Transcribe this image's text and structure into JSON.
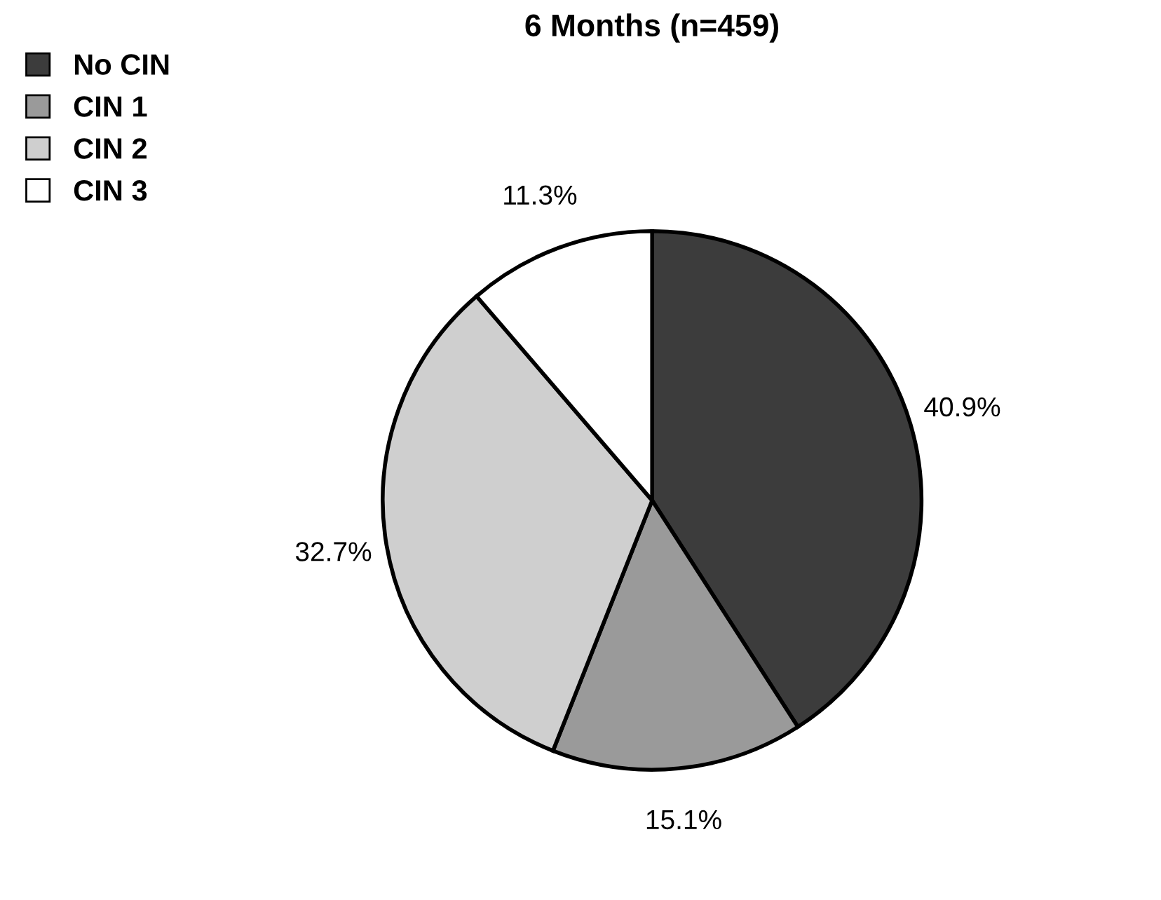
{
  "chart_data": {
    "type": "pie",
    "title": "6 Months (n=459)",
    "categories": [
      "No CIN",
      "CIN 1",
      "CIN 2",
      "CIN 3"
    ],
    "values": [
      40.9,
      15.1,
      32.7,
      11.3
    ],
    "colors": [
      "#3c3c3c",
      "#9a9a9a",
      "#cfcfcf",
      "#ffffff"
    ],
    "value_labels": [
      "40.9%",
      "15.1%",
      "32.7%",
      "11.3%"
    ],
    "legend": "top left"
  }
}
